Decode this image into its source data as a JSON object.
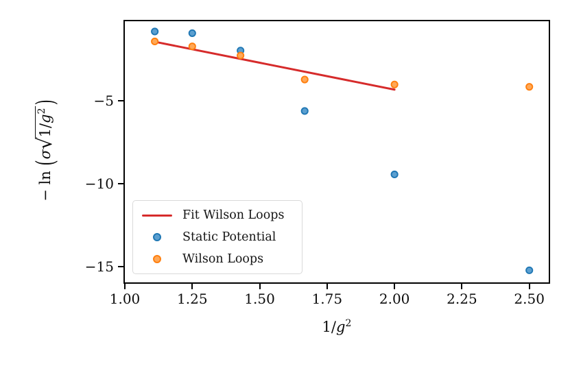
{
  "figure": {
    "background": "#ffffff",
    "xlabel_parts": {
      "prefix": "1/",
      "var": "g",
      "sup": "2"
    },
    "ylabel_parts": {
      "minus_ln": "− ln",
      "open": "(",
      "sigma": "σ",
      "sqrt": "√",
      "radicand_prefix": "1/",
      "radicand_var": "g",
      "radicand_sup": "2",
      "close": ")"
    }
  },
  "chart_data": {
    "type": "scatter",
    "title": "",
    "xlabel": "1/g^2",
    "ylabel": "-ln( sigma * sqrt(1/g^2) )",
    "xlim": [
      1.0,
      2.572
    ],
    "ylim": [
      -15.95,
      -0.18
    ],
    "x_ticks": [
      1.0,
      1.25,
      1.5,
      1.75,
      2.0,
      2.25,
      2.5
    ],
    "x_tick_labels": [
      "1.00",
      "1.25",
      "1.50",
      "1.75",
      "2.00",
      "2.25",
      "2.50"
    ],
    "y_ticks": [
      -5,
      -10,
      -15
    ],
    "y_tick_labels": [
      "−5",
      "−10",
      "−15"
    ],
    "grid": false,
    "legend_position": "lower left",
    "colors": {
      "fit_line": "#d62b2b",
      "static_potential_edge": "#1f77b4",
      "static_potential_fill": "#5b9fd0",
      "wilson_loops_edge": "#ff7f0e",
      "wilson_loops_fill": "#ffa857",
      "axes": "#000000",
      "legend_border": "#d9d9d9"
    },
    "series": [
      {
        "name": "Fit Wilson Loops",
        "type": "line",
        "color": "#d62b2b",
        "x": [
          1.111,
          2.0
        ],
        "y": [
          -1.42,
          -4.31
        ]
      },
      {
        "name": "Static Potential",
        "type": "scatter",
        "edge_color": "#1f77b4",
        "fill_color": "#5b9fd0",
        "x": [
          1.111,
          1.25,
          1.429,
          1.667,
          2.0,
          2.5
        ],
        "y": [
          -0.8,
          -0.9,
          -1.95,
          -5.6,
          -9.43,
          -15.22
        ]
      },
      {
        "name": "Wilson Loops",
        "type": "scatter",
        "edge_color": "#ff7f0e",
        "fill_color": "#ffa857",
        "x": [
          1.111,
          1.25,
          1.429,
          1.667,
          2.0,
          2.5
        ],
        "y": [
          -1.4,
          -1.7,
          -2.25,
          -3.7,
          -4.0,
          -4.14
        ]
      }
    ],
    "legend": {
      "entries": [
        "Fit Wilson Loops",
        "Static Potential",
        "Wilson Loops"
      ]
    }
  }
}
